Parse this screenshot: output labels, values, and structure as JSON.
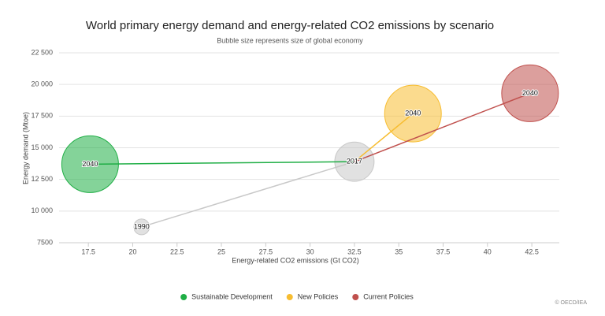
{
  "chart_data": {
    "type": "bubble",
    "title": "World primary energy demand and energy-related CO2 emissions by scenario",
    "subtitle": "Bubble size represents size of global economy",
    "x_label": "Energy-related CO2 emissions (Gt CO2)",
    "y_label": "Energy demand (Mtoe)",
    "xlim": [
      15.85,
      44.05
    ],
    "xticks": [
      17.5,
      20,
      22.5,
      25,
      27.5,
      30,
      32.5,
      35,
      37.5,
      40,
      42.5
    ],
    "ylim": [
      7500,
      22500
    ],
    "yticks": [
      7500,
      {
        "value": 10000,
        "label": "10 000"
      },
      {
        "value": 12500,
        "label": "12 500"
      },
      {
        "value": 15000,
        "label": "15 000"
      },
      {
        "value": 17500,
        "label": "17 500"
      },
      {
        "value": 20000,
        "label": "20 000"
      },
      {
        "value": 22500,
        "label": "22 500"
      }
    ],
    "grid": true,
    "series": [
      {
        "color": "#c8c8c8",
        "x": [
          20.5,
          32.5
        ],
        "values": [
          8750,
          13900
        ],
        "sizes": [
          40,
          250
        ],
        "labels": [
          "1990",
          "2017"
        ]
      },
      {
        "name": "Sustainable Development",
        "color": "#1fae45",
        "x": [
          17.6
        ],
        "values": [
          13700
        ],
        "sizes": [
          520
        ],
        "labels": [
          "2040"
        ]
      },
      {
        "name": "New Policies",
        "color": "#f7bd31",
        "x": [
          35.8
        ],
        "values": [
          17700
        ],
        "sizes": [
          520
        ],
        "labels": [
          "2040"
        ]
      },
      {
        "name": "Current Policies",
        "color": "#c0504d",
        "x": [
          42.4
        ],
        "values": [
          19300
        ],
        "sizes": [
          520
        ],
        "labels": [
          "2040"
        ]
      }
    ],
    "credit": "© OECD/IEA"
  }
}
